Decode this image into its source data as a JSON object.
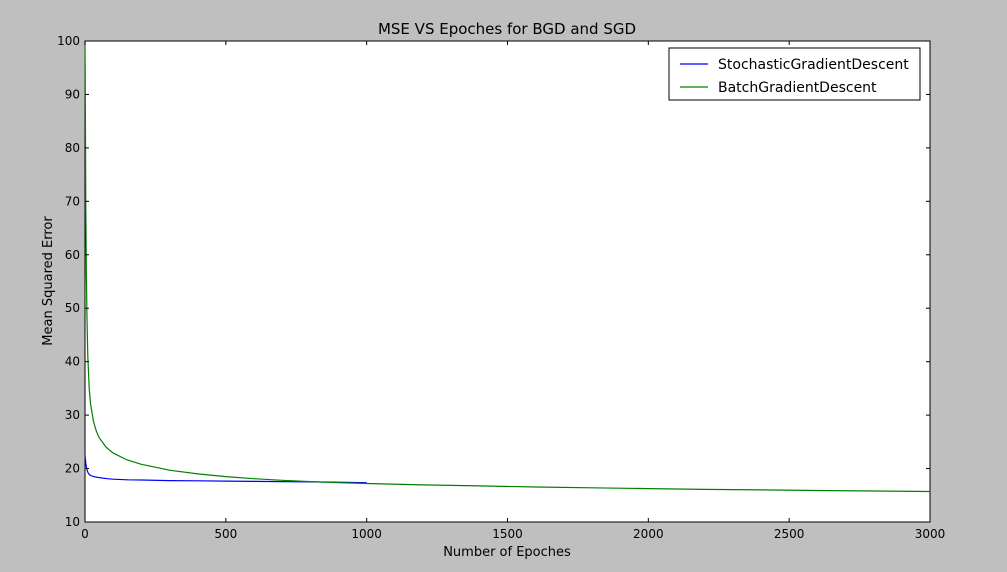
{
  "chart_data": {
    "type": "line",
    "title": "MSE VS Epoches for BGD and SGD",
    "xlabel": "Number of Epoches",
    "ylabel": "Mean Squared Error",
    "xlim": [
      0,
      3000
    ],
    "ylim": [
      10,
      100
    ],
    "xticks": [
      0,
      500,
      1000,
      1500,
      2000,
      2500,
      3000
    ],
    "yticks": [
      10,
      20,
      30,
      40,
      50,
      60,
      70,
      80,
      90,
      100
    ],
    "grid": false,
    "legend_position": "top-right",
    "series": [
      {
        "name": "StochasticGradientDescent",
        "color": "#0000ff",
        "x": [
          0,
          3,
          6,
          10,
          15,
          20,
          30,
          50,
          80,
          100,
          150,
          200,
          300,
          400,
          500,
          600,
          700,
          800,
          900,
          1000
        ],
        "y": [
          22.5,
          21,
          20,
          19.3,
          18.9,
          18.7,
          18.5,
          18.3,
          18.1,
          18.0,
          17.9,
          17.85,
          17.75,
          17.7,
          17.65,
          17.6,
          17.55,
          17.5,
          17.45,
          17.35
        ]
      },
      {
        "name": "BatchGradientDescent",
        "color": "#008000",
        "x": [
          0,
          1,
          2,
          3,
          5,
          7,
          10,
          15,
          20,
          30,
          40,
          50,
          75,
          100,
          150,
          200,
          300,
          400,
          500,
          600,
          700,
          800,
          900,
          1000,
          1200,
          1400,
          1600,
          1800,
          2000,
          2200,
          2400,
          2600,
          2800,
          3000
        ],
        "y": [
          100,
          90,
          78,
          69,
          56,
          48,
          41,
          35,
          32,
          28.8,
          27,
          25.8,
          24,
          22.9,
          21.6,
          20.8,
          19.7,
          19.0,
          18.5,
          18.1,
          17.8,
          17.55,
          17.35,
          17.2,
          16.95,
          16.75,
          16.55,
          16.4,
          16.25,
          16.1,
          16.0,
          15.9,
          15.8,
          15.7
        ]
      }
    ]
  }
}
